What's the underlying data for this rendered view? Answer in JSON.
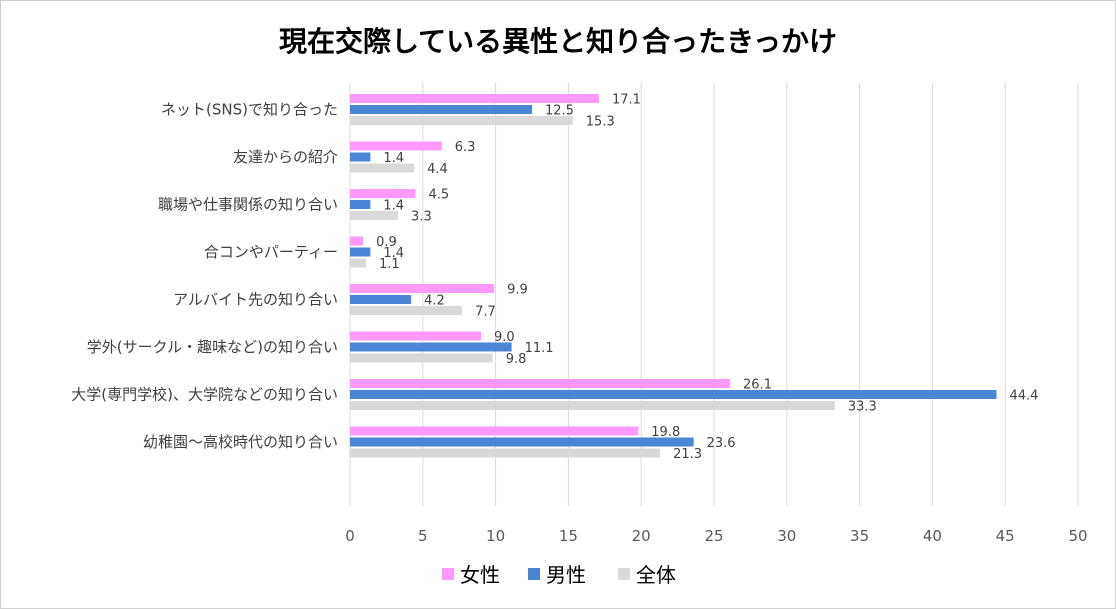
{
  "chart_data": {
    "type": "bar",
    "orientation": "horizontal",
    "title": "現在交際している異性と知り合ったきっかけ",
    "categories": [
      "ネット(SNS)で知り合った",
      "友達からの紹介",
      "職場や仕事関係の知り合い",
      "合コンやパーティー",
      "アルバイト先の知り合い",
      "学外(サークル・趣味など)の知り合い",
      "大学(専門学校)、大学院などの知り合い",
      "幼稚園〜高校時代の知り合い"
    ],
    "series": [
      {
        "name": "女性",
        "color": "#ff99ff",
        "values": [
          17.1,
          6.3,
          4.5,
          0.9,
          9.9,
          9.0,
          26.1,
          19.8
        ]
      },
      {
        "name": "男性",
        "color": "#4a86d4",
        "values": [
          12.5,
          1.4,
          1.4,
          1.4,
          4.2,
          11.1,
          44.4,
          23.6
        ]
      },
      {
        "name": "全体",
        "color": "#d9d9d9",
        "values": [
          15.3,
          4.4,
          3.3,
          1.1,
          7.7,
          9.8,
          33.3,
          21.3
        ]
      }
    ],
    "xlim": [
      0,
      50
    ],
    "xticks": [
      0,
      5,
      10,
      15,
      20,
      25,
      30,
      35,
      40,
      45,
      50
    ],
    "grid": "vertical",
    "legend": "bottom"
  }
}
